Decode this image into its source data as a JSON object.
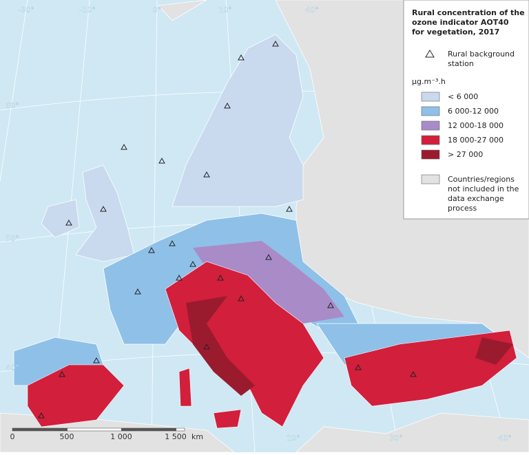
{
  "map": {
    "graticule_labels": {
      "top": [
        "-30°",
        "-10°",
        "0°",
        "10°",
        "40°"
      ],
      "left": [
        "60°",
        "50°",
        "40°"
      ],
      "bottom": [
        "20°",
        "30°",
        "40°"
      ]
    },
    "scale_bar": {
      "labels": [
        "0",
        "500",
        "1 000",
        "1 500"
      ],
      "unit": "km"
    },
    "legend": {
      "title": [
        "Rural concentration of the",
        "ozone indicator AOT40",
        "for vegetation, 2017"
      ],
      "station": [
        "Rural background",
        "station"
      ],
      "unit": "µg.m⁻³.h",
      "classes": [
        {
          "label": "< 6 000",
          "color": "#c9d9ee"
        },
        {
          "label": "6 000-12 000",
          "color": "#8fc0e8"
        },
        {
          "label": "12 000-18 000",
          "color": "#a98bc8"
        },
        {
          "label": "18 000-27 000",
          "color": "#d21f3c"
        },
        {
          "label": "> 27 000",
          "color": "#9b1b2e"
        }
      ],
      "excluded": [
        "Countries/regions",
        "not included in the",
        "data exchange",
        "process"
      ]
    }
  }
}
